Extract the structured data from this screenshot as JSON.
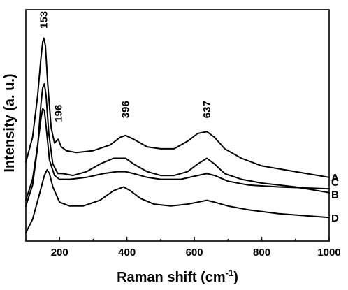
{
  "chart_data": {
    "type": "line",
    "title": "",
    "xlabel": "Raman shift (cm",
    "xlabel_sup": "-1",
    "xlabel_end": ")",
    "ylabel": "Intensity (a. u.)",
    "xlim": [
      100,
      1000
    ],
    "ylim": [
      0,
      1
    ],
    "x_ticks": [
      200,
      400,
      600,
      800,
      1000
    ],
    "x_tick_labels": [
      "200",
      "400",
      "600",
      "800",
      "1000"
    ],
    "y_ticks_labeled": false,
    "grid": false,
    "line_color": "#000000",
    "peak_annotations": [
      {
        "label": "153",
        "x": 153,
        "y": 1.07
      },
      {
        "label": "196",
        "x": 196,
        "y": 0.58
      },
      {
        "label": "396",
        "x": 396,
        "y": 0.6
      },
      {
        "label": "637",
        "x": 637,
        "y": 0.6
      }
    ],
    "series": [
      {
        "name": "A",
        "x": [
          100,
          120,
          135,
          145,
          150,
          153,
          158,
          165,
          175,
          185,
          196,
          205,
          220,
          250,
          300,
          350,
          380,
          396,
          420,
          460,
          500,
          540,
          580,
          610,
          637,
          660,
          690,
          740,
          800,
          900,
          1000
        ],
        "y": [
          0.37,
          0.5,
          0.72,
          0.92,
          1.0,
          1.02,
          0.98,
          0.78,
          0.55,
          0.47,
          0.49,
          0.45,
          0.43,
          0.42,
          0.43,
          0.46,
          0.5,
          0.51,
          0.49,
          0.45,
          0.44,
          0.44,
          0.48,
          0.52,
          0.53,
          0.5,
          0.44,
          0.39,
          0.35,
          0.32,
          0.29
        ]
      },
      {
        "name": "B",
        "x": [
          100,
          120,
          135,
          145,
          150,
          155,
          160,
          168,
          180,
          195,
          210,
          240,
          280,
          320,
          360,
          396,
          420,
          460,
          500,
          540,
          580,
          610,
          637,
          660,
          690,
          740,
          800,
          900,
          1000
        ],
        "y": [
          0.14,
          0.25,
          0.45,
          0.68,
          0.76,
          0.78,
          0.72,
          0.52,
          0.36,
          0.31,
          0.31,
          0.3,
          0.32,
          0.36,
          0.39,
          0.39,
          0.36,
          0.32,
          0.3,
          0.3,
          0.32,
          0.36,
          0.39,
          0.36,
          0.31,
          0.28,
          0.26,
          0.24,
          0.21
        ]
      },
      {
        "name": "C",
        "x": [
          100,
          120,
          135,
          145,
          150,
          155,
          160,
          170,
          185,
          200,
          230,
          280,
          330,
          370,
          396,
          420,
          460,
          500,
          560,
          610,
          637,
          660,
          700,
          760,
          850,
          1000
        ],
        "y": [
          0.17,
          0.28,
          0.46,
          0.6,
          0.65,
          0.64,
          0.56,
          0.38,
          0.3,
          0.28,
          0.28,
          0.29,
          0.31,
          0.32,
          0.32,
          0.31,
          0.29,
          0.28,
          0.28,
          0.3,
          0.31,
          0.3,
          0.27,
          0.25,
          0.24,
          0.23
        ]
      },
      {
        "name": "D",
        "x": [
          100,
          120,
          140,
          155,
          163,
          170,
          180,
          200,
          230,
          270,
          320,
          360,
          390,
          410,
          440,
          480,
          530,
          580,
          610,
          637,
          660,
          700,
          760,
          850,
          1000
        ],
        "y": [
          0.0,
          0.07,
          0.2,
          0.3,
          0.33,
          0.31,
          0.24,
          0.16,
          0.14,
          0.14,
          0.17,
          0.22,
          0.24,
          0.22,
          0.18,
          0.15,
          0.14,
          0.15,
          0.16,
          0.17,
          0.16,
          0.14,
          0.12,
          0.1,
          0.08
        ]
      }
    ]
  }
}
